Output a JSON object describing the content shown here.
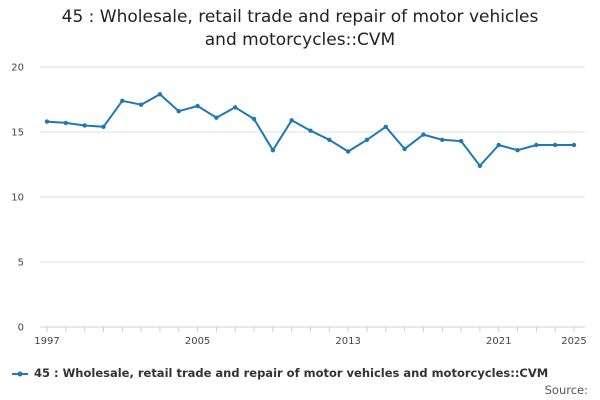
{
  "title_line1": "45 : Wholesale, retail trade and repair of motor vehicles",
  "title_line2": "and motorcycles::CVM",
  "source_label": "Source:",
  "colors": {
    "series": "#1f78b4",
    "grid": "#e2e2e2",
    "text": "#444444"
  },
  "chart_data": {
    "type": "line",
    "xlabel": "",
    "ylabel": "",
    "xlim": [
      1997,
      2025
    ],
    "ylim": [
      0,
      20
    ],
    "yticks": [
      0,
      5,
      10,
      15,
      20
    ],
    "xticks": [
      1997,
      2005,
      2013,
      2021,
      2025
    ],
    "grid": true,
    "legend_position": "bottom",
    "x": [
      1997,
      1998,
      1999,
      2000,
      2001,
      2002,
      2003,
      2004,
      2005,
      2006,
      2007,
      2008,
      2009,
      2010,
      2011,
      2012,
      2013,
      2014,
      2015,
      2016,
      2017,
      2018,
      2019,
      2020,
      2021,
      2022,
      2023,
      2024,
      2025
    ],
    "series": [
      {
        "name": "45 : Wholesale, retail trade and repair of motor vehicles and motorcycles::CVM",
        "values": [
          15.8,
          15.7,
          15.5,
          15.4,
          17.4,
          17.1,
          17.9,
          16.6,
          17.0,
          16.1,
          16.9,
          16.0,
          13.6,
          15.9,
          15.1,
          14.4,
          13.5,
          14.4,
          15.4,
          13.7,
          14.8,
          14.4,
          14.3,
          12.4,
          14.0,
          13.6,
          14.0,
          14.0,
          14.0
        ]
      }
    ]
  }
}
